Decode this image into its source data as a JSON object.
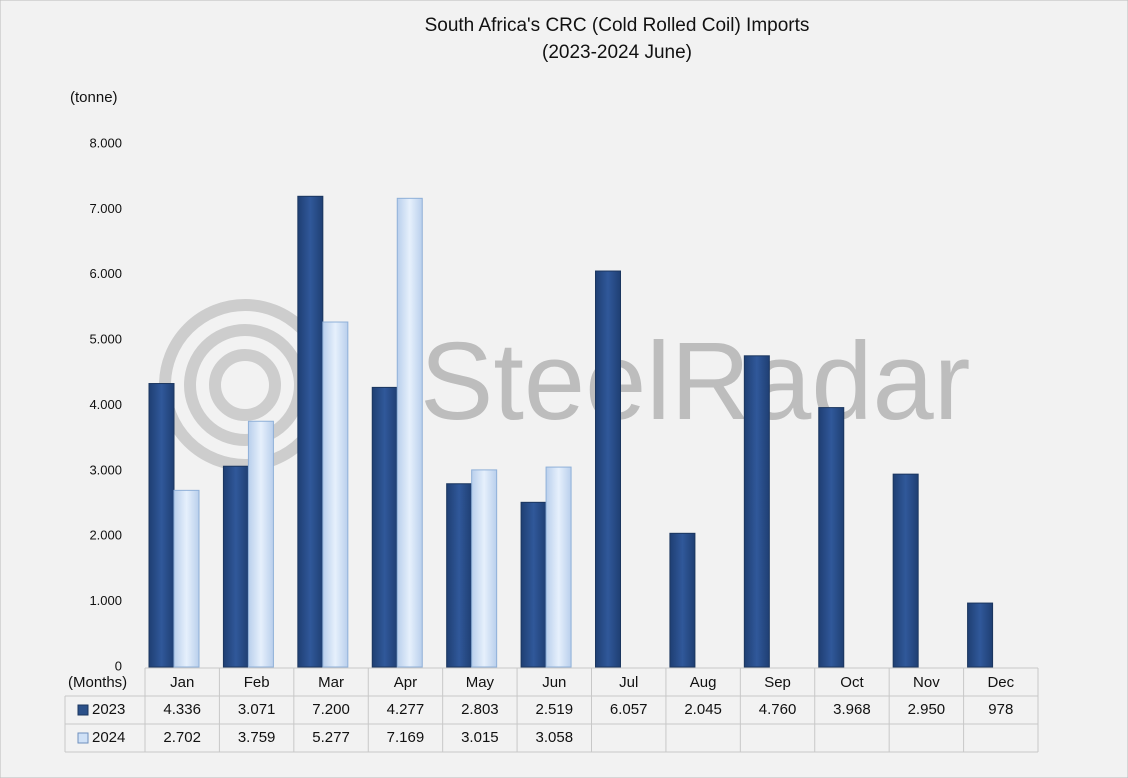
{
  "chart_data": {
    "type": "bar",
    "title": "South Africa's CRC (Cold Rolled Coil) Imports",
    "subtitle": "(2023-2024 June)",
    "y_label": "(tonne)",
    "x_label": "(Months)",
    "watermark": "SteelRadar",
    "categories": [
      "Jan",
      "Feb",
      "Mar",
      "Apr",
      "May",
      "Jun",
      "Jul",
      "Aug",
      "Sep",
      "Oct",
      "Nov",
      "Dec"
    ],
    "series": [
      {
        "name": "2023",
        "color": "#2b5089",
        "values": [
          4336,
          3071,
          7200,
          4277,
          2803,
          2519,
          6057,
          2045,
          4760,
          3968,
          2950,
          978
        ],
        "value_labels": [
          "4.336",
          "3.071",
          "7.200",
          "4.277",
          "2.803",
          "2.519",
          "6.057",
          "2.045",
          "4.760",
          "3.968",
          "2.950",
          "978"
        ]
      },
      {
        "name": "2024",
        "color": "#cfe1f7",
        "values": [
          2702,
          3759,
          5277,
          7169,
          3015,
          3058,
          null,
          null,
          null,
          null,
          null,
          null
        ],
        "value_labels": [
          "2.702",
          "3.759",
          "5.277",
          "7.169",
          "3.015",
          "3.058",
          null,
          null,
          null,
          null,
          null,
          null
        ]
      }
    ],
    "ylim": [
      0,
      8000
    ],
    "yticks": [
      0,
      {
        "value": 1000,
        "label": "1.000"
      },
      {
        "value": 2000,
        "label": "2.000"
      },
      {
        "value": 3000,
        "label": "3.000"
      },
      {
        "value": 4000,
        "label": "4.000"
      },
      {
        "value": 5000,
        "label": "5.000"
      },
      {
        "value": 6000,
        "label": "6.000"
      },
      {
        "value": 7000,
        "label": "7.000"
      },
      {
        "value": 8000,
        "label": "8.000"
      }
    ],
    "grid": false
  }
}
